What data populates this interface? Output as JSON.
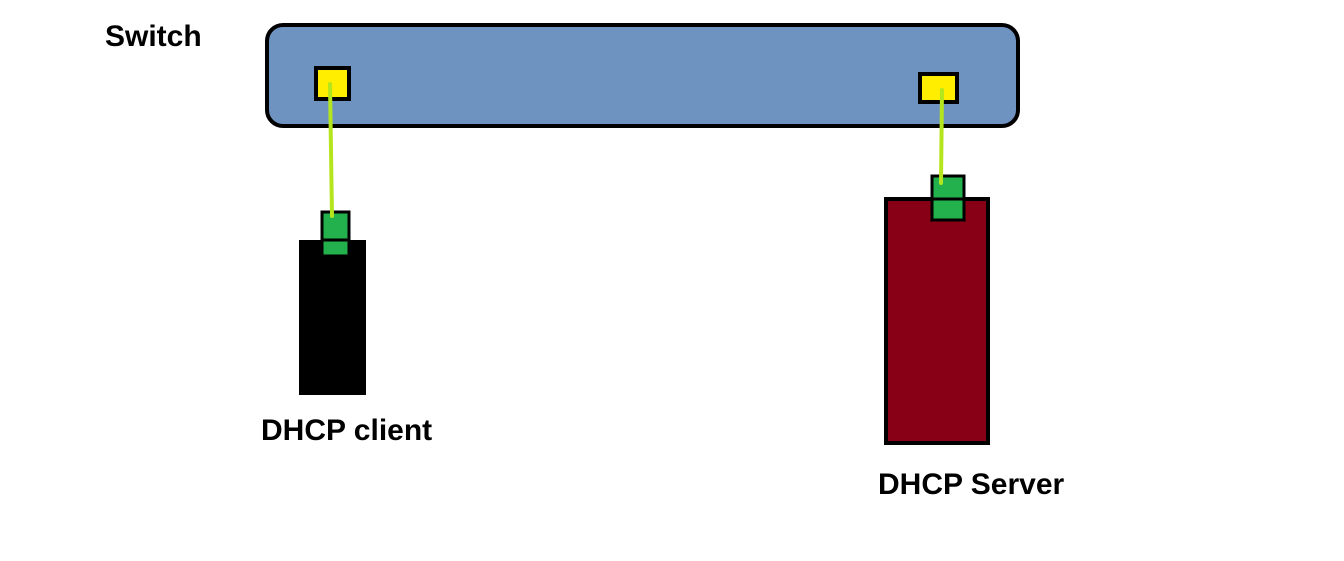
{
  "labels": {
    "switch": "Switch",
    "client": "DHCP client",
    "server": "DHCP Server"
  },
  "colors": {
    "switch_fill": "#6f93c0",
    "port_fill": "#ffee00",
    "client_fill": "#000000",
    "server_fill": "#880015",
    "connector_fill": "#22b14c",
    "cable": "#b5e61d",
    "outline": "#000000"
  }
}
